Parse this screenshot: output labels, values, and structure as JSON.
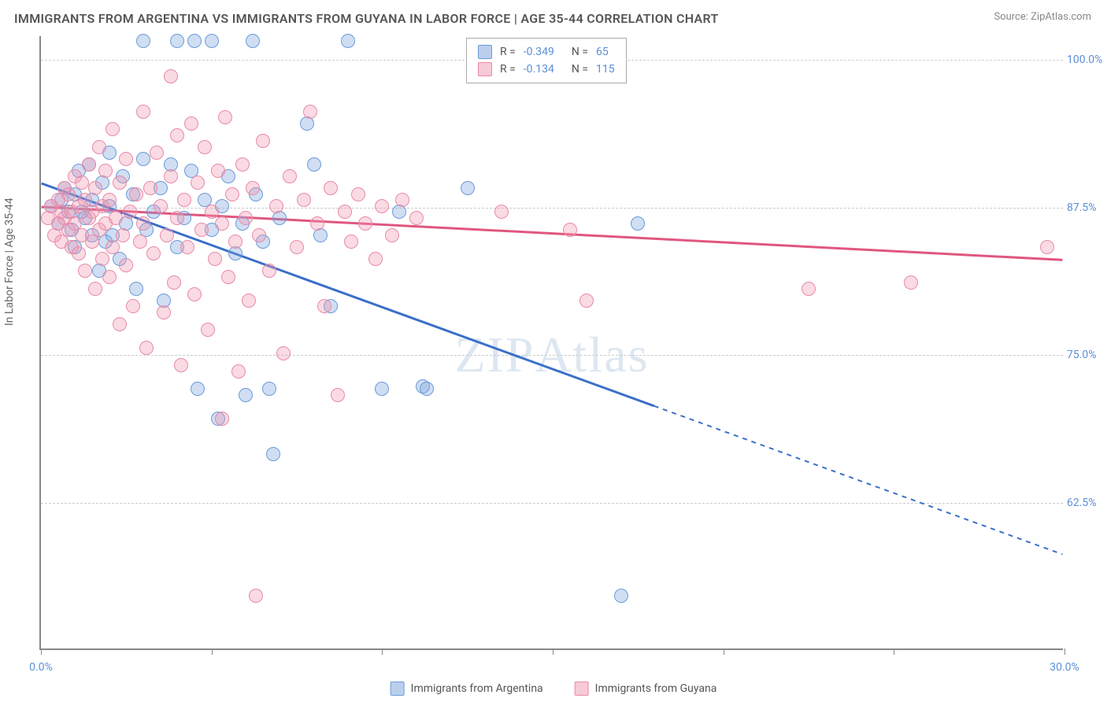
{
  "title": "IMMIGRANTS FROM ARGENTINA VS IMMIGRANTS FROM GUYANA IN LABOR FORCE | AGE 35-44 CORRELATION CHART",
  "source": "Source: ZipAtlas.com",
  "y_axis_label": "In Labor Force | Age 35-44",
  "watermark": "ZIPAtlas",
  "chart": {
    "type": "scatter",
    "xlim": [
      0,
      30
    ],
    "ylim": [
      50,
      102
    ],
    "x_ticks": [
      0,
      5,
      10,
      15,
      20,
      25,
      30
    ],
    "x_tick_labels": {
      "0": "0.0%",
      "30": "30.0%"
    },
    "y_ticks": [
      62.5,
      75.0,
      87.5,
      100.0
    ],
    "y_tick_labels": [
      "62.5%",
      "75.0%",
      "87.5%",
      "100.0%"
    ],
    "grid_color": "#cccccc",
    "axis_color": "#888888",
    "background_color": "#ffffff",
    "tick_label_color": "#5b8fd9",
    "marker_radius": 9,
    "marker_opacity": 0.35
  },
  "series": [
    {
      "name": "Immigrants from Argentina",
      "color_fill": "#7aa3dc",
      "color_stroke": "#6a9bd8",
      "R": "-0.349",
      "N": "65",
      "trend": {
        "x1": 0,
        "y1": 89.5,
        "x2": 30,
        "y2": 58.0,
        "solid_until_x": 18,
        "stroke_width": 3
      },
      "points": [
        [
          0.3,
          87.5
        ],
        [
          0.5,
          86.0
        ],
        [
          0.6,
          88.0
        ],
        [
          0.7,
          89.0
        ],
        [
          0.8,
          87.0
        ],
        [
          0.9,
          85.5
        ],
        [
          1.0,
          88.5
        ],
        [
          1.0,
          84.0
        ],
        [
          1.1,
          90.5
        ],
        [
          1.2,
          87.0
        ],
        [
          1.3,
          86.5
        ],
        [
          1.4,
          91.0
        ],
        [
          1.5,
          85.0
        ],
        [
          1.5,
          88.0
        ],
        [
          1.7,
          82.0
        ],
        [
          1.8,
          89.5
        ],
        [
          1.9,
          84.5
        ],
        [
          2.0,
          92.0
        ],
        [
          2.0,
          87.5
        ],
        [
          2.1,
          85.0
        ],
        [
          2.3,
          83.0
        ],
        [
          2.4,
          90.0
        ],
        [
          2.5,
          86.0
        ],
        [
          2.7,
          88.5
        ],
        [
          2.8,
          80.5
        ],
        [
          3.0,
          91.5
        ],
        [
          3.0,
          101.5
        ],
        [
          3.1,
          85.5
        ],
        [
          3.3,
          87.0
        ],
        [
          3.5,
          89.0
        ],
        [
          3.6,
          79.5
        ],
        [
          3.8,
          91.0
        ],
        [
          4.0,
          101.5
        ],
        [
          4.0,
          84.0
        ],
        [
          4.2,
          86.5
        ],
        [
          4.4,
          90.5
        ],
        [
          4.5,
          101.5
        ],
        [
          4.6,
          72.0
        ],
        [
          4.8,
          88.0
        ],
        [
          5.0,
          85.5
        ],
        [
          5.0,
          101.5
        ],
        [
          5.2,
          69.5
        ],
        [
          5.3,
          87.5
        ],
        [
          5.5,
          90.0
        ],
        [
          5.7,
          83.5
        ],
        [
          5.9,
          86.0
        ],
        [
          6.0,
          71.5
        ],
        [
          6.2,
          101.5
        ],
        [
          6.3,
          88.5
        ],
        [
          6.5,
          84.5
        ],
        [
          6.7,
          72.0
        ],
        [
          6.8,
          66.5
        ],
        [
          7.0,
          86.5
        ],
        [
          7.8,
          94.5
        ],
        [
          8.0,
          91.0
        ],
        [
          8.2,
          85.0
        ],
        [
          8.5,
          79.0
        ],
        [
          9.0,
          101.5
        ],
        [
          10.0,
          72.0
        ],
        [
          10.5,
          87.0
        ],
        [
          11.2,
          72.2
        ],
        [
          11.3,
          72.0
        ],
        [
          12.5,
          89.0
        ],
        [
          17.0,
          54.5
        ],
        [
          17.5,
          86.0
        ]
      ]
    },
    {
      "name": "Immigrants from Guyana",
      "color_fill": "#f296b0",
      "color_stroke": "#e88aa8",
      "R": "-0.134",
      "N": "115",
      "trend": {
        "x1": 0,
        "y1": 87.5,
        "x2": 30,
        "y2": 83.0,
        "solid_until_x": 30,
        "stroke_width": 3
      },
      "points": [
        [
          0.2,
          86.5
        ],
        [
          0.3,
          87.5
        ],
        [
          0.4,
          85.0
        ],
        [
          0.5,
          88.0
        ],
        [
          0.5,
          86.0
        ],
        [
          0.6,
          87.0
        ],
        [
          0.6,
          84.5
        ],
        [
          0.7,
          89.0
        ],
        [
          0.7,
          86.5
        ],
        [
          0.8,
          85.5
        ],
        [
          0.8,
          88.5
        ],
        [
          0.9,
          87.0
        ],
        [
          0.9,
          84.0
        ],
        [
          1.0,
          90.0
        ],
        [
          1.0,
          86.0
        ],
        [
          1.1,
          87.5
        ],
        [
          1.1,
          83.5
        ],
        [
          1.2,
          89.5
        ],
        [
          1.2,
          85.0
        ],
        [
          1.3,
          88.0
        ],
        [
          1.3,
          82.0
        ],
        [
          1.4,
          86.5
        ],
        [
          1.4,
          91.0
        ],
        [
          1.5,
          84.5
        ],
        [
          1.5,
          87.0
        ],
        [
          1.6,
          80.5
        ],
        [
          1.6,
          89.0
        ],
        [
          1.7,
          85.5
        ],
        [
          1.7,
          92.5
        ],
        [
          1.8,
          83.0
        ],
        [
          1.8,
          87.5
        ],
        [
          1.9,
          86.0
        ],
        [
          1.9,
          90.5
        ],
        [
          2.0,
          81.5
        ],
        [
          2.0,
          88.0
        ],
        [
          2.1,
          84.0
        ],
        [
          2.1,
          94.0
        ],
        [
          2.2,
          86.5
        ],
        [
          2.3,
          77.5
        ],
        [
          2.3,
          89.5
        ],
        [
          2.4,
          85.0
        ],
        [
          2.5,
          91.5
        ],
        [
          2.5,
          82.5
        ],
        [
          2.6,
          87.0
        ],
        [
          2.7,
          79.0
        ],
        [
          2.8,
          88.5
        ],
        [
          2.9,
          84.5
        ],
        [
          3.0,
          95.5
        ],
        [
          3.0,
          86.0
        ],
        [
          3.1,
          75.5
        ],
        [
          3.2,
          89.0
        ],
        [
          3.3,
          83.5
        ],
        [
          3.4,
          92.0
        ],
        [
          3.5,
          87.5
        ],
        [
          3.6,
          78.5
        ],
        [
          3.7,
          85.0
        ],
        [
          3.8,
          98.5
        ],
        [
          3.8,
          90.0
        ],
        [
          3.9,
          81.0
        ],
        [
          4.0,
          93.5
        ],
        [
          4.0,
          86.5
        ],
        [
          4.1,
          74.0
        ],
        [
          4.2,
          88.0
        ],
        [
          4.3,
          84.0
        ],
        [
          4.4,
          94.5
        ],
        [
          4.5,
          80.0
        ],
        [
          4.6,
          89.5
        ],
        [
          4.7,
          85.5
        ],
        [
          4.8,
          92.5
        ],
        [
          4.9,
          77.0
        ],
        [
          5.0,
          87.0
        ],
        [
          5.1,
          83.0
        ],
        [
          5.2,
          90.5
        ],
        [
          5.3,
          69.5
        ],
        [
          5.3,
          86.0
        ],
        [
          5.4,
          95.0
        ],
        [
          5.5,
          81.5
        ],
        [
          5.6,
          88.5
        ],
        [
          5.7,
          84.5
        ],
        [
          5.8,
          73.5
        ],
        [
          5.9,
          91.0
        ],
        [
          6.0,
          86.5
        ],
        [
          6.1,
          79.5
        ],
        [
          6.2,
          89.0
        ],
        [
          6.3,
          54.5
        ],
        [
          6.4,
          85.0
        ],
        [
          6.5,
          93.0
        ],
        [
          6.7,
          82.0
        ],
        [
          6.9,
          87.5
        ],
        [
          7.1,
          75.0
        ],
        [
          7.3,
          90.0
        ],
        [
          7.5,
          84.0
        ],
        [
          7.7,
          88.0
        ],
        [
          7.9,
          95.5
        ],
        [
          8.1,
          86.0
        ],
        [
          8.3,
          79.0
        ],
        [
          8.5,
          89.0
        ],
        [
          8.7,
          71.5
        ],
        [
          8.9,
          87.0
        ],
        [
          9.1,
          84.5
        ],
        [
          9.3,
          88.5
        ],
        [
          9.5,
          86.0
        ],
        [
          9.8,
          83.0
        ],
        [
          10.0,
          87.5
        ],
        [
          10.3,
          85.0
        ],
        [
          10.6,
          88.0
        ],
        [
          11.0,
          86.5
        ],
        [
          13.5,
          87.0
        ],
        [
          15.5,
          85.5
        ],
        [
          16.0,
          79.5
        ],
        [
          22.5,
          80.5
        ],
        [
          25.5,
          81.0
        ],
        [
          29.5,
          84.0
        ]
      ]
    }
  ]
}
